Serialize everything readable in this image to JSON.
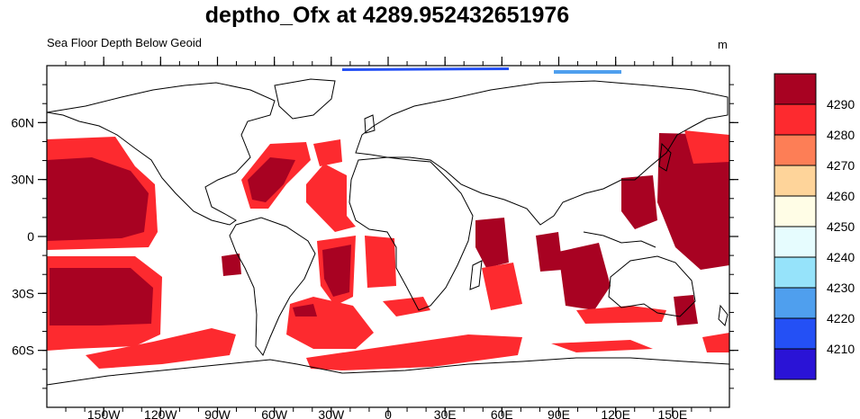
{
  "title": "deptho_Ofx at 4289.952432651976",
  "subtitle": "Sea Floor Depth Below Geoid",
  "units": "m",
  "map": {
    "projection": "cylindrical equidistant, centered at 0",
    "lon_ticks": [
      {
        "lon": -150,
        "label": "150W"
      },
      {
        "lon": -120,
        "label": "120W"
      },
      {
        "lon": -90,
        "label": "90W"
      },
      {
        "lon": -60,
        "label": "60W"
      },
      {
        "lon": -30,
        "label": "30W"
      },
      {
        "lon": 0,
        "label": "0"
      },
      {
        "lon": 30,
        "label": "30E"
      },
      {
        "lon": 60,
        "label": "60E"
      },
      {
        "lon": 90,
        "label": "90E"
      },
      {
        "lon": 120,
        "label": "120E"
      },
      {
        "lon": 150,
        "label": "150E"
      }
    ],
    "lat_ticks": [
      {
        "lat": 60,
        "label": "60N"
      },
      {
        "lat": 30,
        "label": "30N"
      },
      {
        "lat": 0,
        "label": "0"
      },
      {
        "lat": -30,
        "label": "30S"
      },
      {
        "lat": -60,
        "label": "60S"
      }
    ]
  },
  "colorbar": {
    "levels": [
      "4210",
      "4220",
      "4230",
      "4240",
      "4250",
      "4260",
      "4270",
      "4280",
      "4290"
    ],
    "colors": [
      "#2a13d6",
      "#2450f5",
      "#4f9fee",
      "#96e3fa",
      "#e6fcfe",
      "#fffde6",
      "#fed49a",
      "#fd7e56",
      "#fd2a2f",
      "#a80222"
    ]
  },
  "colors": {
    "high_depth": "#a80222",
    "mid_depth": "#fd2a2f",
    "coast": "#000000"
  }
}
